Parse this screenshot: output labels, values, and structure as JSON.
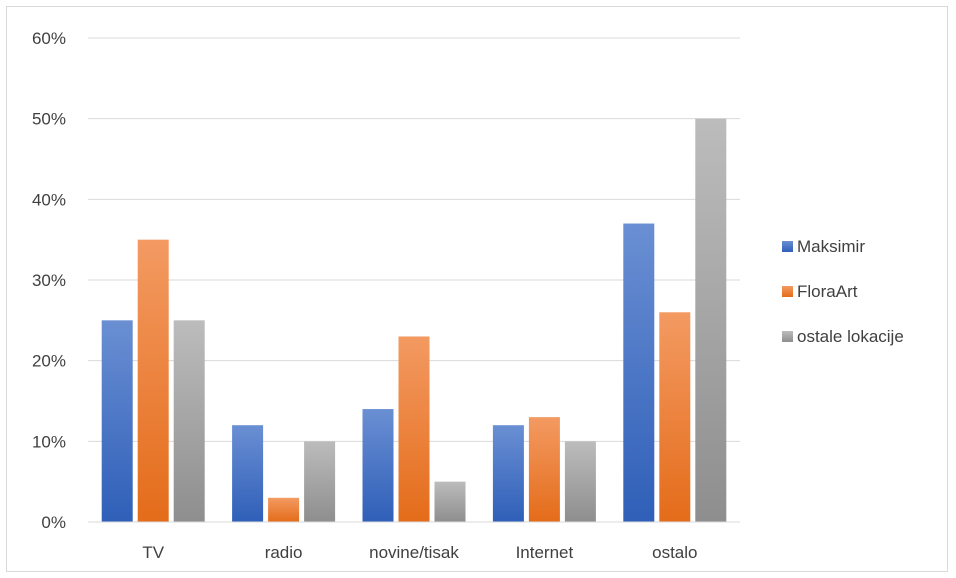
{
  "chart_data": {
    "type": "bar",
    "categories": [
      "TV",
      "radio",
      "novine/tisak",
      "Internet",
      "ostalo"
    ],
    "series": [
      {
        "name": "Maksimir",
        "values": [
          25,
          12,
          14,
          12,
          37
        ],
        "color": "#4472c4"
      },
      {
        "name": "FloraArt",
        "values": [
          35,
          3,
          23,
          13,
          26
        ],
        "color": "#ed7d31"
      },
      {
        "name": "ostale lokacije",
        "values": [
          25,
          10,
          5,
          10,
          50
        ],
        "color": "#a5a5a5"
      }
    ],
    "yticks": [
      "0%",
      "10%",
      "20%",
      "30%",
      "40%",
      "50%",
      "60%"
    ],
    "ylim": [
      0,
      60
    ],
    "grid": true,
    "legend": "right",
    "title": "",
    "xlabel": "",
    "ylabel": ""
  }
}
